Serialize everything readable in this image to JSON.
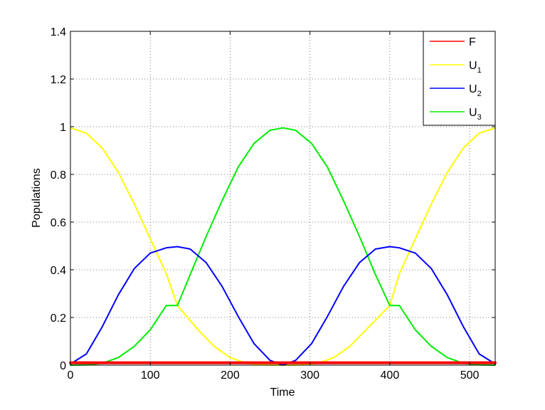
{
  "chart_data": {
    "type": "line",
    "xlabel": "Time",
    "ylabel": "Populations",
    "xlim": [
      0,
      532
    ],
    "ylim": [
      0,
      1.4
    ],
    "xticks": [
      0,
      100,
      200,
      300,
      400,
      500
    ],
    "yticks": [
      0,
      0.2,
      0.4,
      0.6,
      0.8,
      1,
      1.2,
      1.4
    ],
    "xtick_labels": [
      "0",
      "100",
      "200",
      "300",
      "400",
      "500"
    ],
    "ytick_labels": [
      "0",
      "0.2",
      "0.4",
      "0.6",
      "0.8",
      "1",
      "1.2",
      "1.4"
    ],
    "grid": true,
    "legend_position": "top-right",
    "series": [
      {
        "name": "F",
        "label_main": "F",
        "label_sub": "",
        "color": "#ff0000",
        "values": [
          [
            0,
            0.01
          ],
          [
            20,
            0.01
          ],
          [
            50,
            0.01
          ],
          [
            100,
            0.01
          ],
          [
            150,
            0.01
          ],
          [
            200,
            0.01
          ],
          [
            250,
            0.01
          ],
          [
            300,
            0.01
          ],
          [
            350,
            0.01
          ],
          [
            400,
            0.01
          ],
          [
            450,
            0.01
          ],
          [
            500,
            0.01
          ],
          [
            532,
            0.01
          ]
        ]
      },
      {
        "name": "U1",
        "label_main": "U",
        "label_sub": "1",
        "color": "#ffff00",
        "values": [
          [
            0,
            0.995
          ],
          [
            20,
            0.973
          ],
          [
            40,
            0.91
          ],
          [
            60,
            0.808
          ],
          [
            80,
            0.676
          ],
          [
            100,
            0.53
          ],
          [
            120,
            0.384
          ],
          [
            134,
            0.25
          ],
          [
            160,
            0.148
          ],
          [
            180,
            0.079
          ],
          [
            200,
            0.032
          ],
          [
            220,
            0.008
          ],
          [
            240,
            0.001
          ],
          [
            266,
            0.0
          ],
          [
            290,
            0.001
          ],
          [
            310,
            0.008
          ],
          [
            330,
            0.032
          ],
          [
            350,
            0.079
          ],
          [
            370,
            0.148
          ],
          [
            400,
            0.25
          ],
          [
            412,
            0.384
          ],
          [
            432,
            0.53
          ],
          [
            452,
            0.676
          ],
          [
            472,
            0.808
          ],
          [
            492,
            0.91
          ],
          [
            512,
            0.973
          ],
          [
            532,
            0.995
          ]
        ]
      },
      {
        "name": "U2",
        "label_main": "U",
        "label_sub": "2",
        "color": "#0000ff",
        "values": [
          [
            0,
            0.005
          ],
          [
            20,
            0.047
          ],
          [
            40,
            0.162
          ],
          [
            60,
            0.295
          ],
          [
            80,
            0.405
          ],
          [
            100,
            0.47
          ],
          [
            120,
            0.492
          ],
          [
            134,
            0.497
          ],
          [
            150,
            0.487
          ],
          [
            170,
            0.43
          ],
          [
            190,
            0.33
          ],
          [
            210,
            0.205
          ],
          [
            230,
            0.09
          ],
          [
            250,
            0.02
          ],
          [
            266,
            0.0
          ],
          [
            282,
            0.02
          ],
          [
            302,
            0.09
          ],
          [
            322,
            0.205
          ],
          [
            342,
            0.33
          ],
          [
            362,
            0.43
          ],
          [
            382,
            0.487
          ],
          [
            400,
            0.497
          ],
          [
            412,
            0.492
          ],
          [
            432,
            0.47
          ],
          [
            452,
            0.405
          ],
          [
            472,
            0.295
          ],
          [
            492,
            0.162
          ],
          [
            512,
            0.047
          ],
          [
            532,
            0.005
          ]
        ]
      },
      {
        "name": "U3",
        "label_main": "U",
        "label_sub": "3",
        "color": "#00ee00",
        "values": [
          [
            0,
            0.0
          ],
          [
            20,
            0.001
          ],
          [
            40,
            0.008
          ],
          [
            60,
            0.032
          ],
          [
            80,
            0.079
          ],
          [
            100,
            0.148
          ],
          [
            120,
            0.25
          ],
          [
            134,
            0.25
          ],
          [
            150,
            0.38
          ],
          [
            170,
            0.54
          ],
          [
            190,
            0.69
          ],
          [
            210,
            0.83
          ],
          [
            230,
            0.93
          ],
          [
            250,
            0.985
          ],
          [
            266,
            0.995
          ],
          [
            282,
            0.985
          ],
          [
            302,
            0.93
          ],
          [
            322,
            0.83
          ],
          [
            342,
            0.69
          ],
          [
            362,
            0.54
          ],
          [
            382,
            0.38
          ],
          [
            400,
            0.25
          ],
          [
            412,
            0.25
          ],
          [
            432,
            0.148
          ],
          [
            452,
            0.079
          ],
          [
            472,
            0.032
          ],
          [
            492,
            0.008
          ],
          [
            512,
            0.001
          ],
          [
            532,
            0.0
          ]
        ]
      }
    ]
  }
}
